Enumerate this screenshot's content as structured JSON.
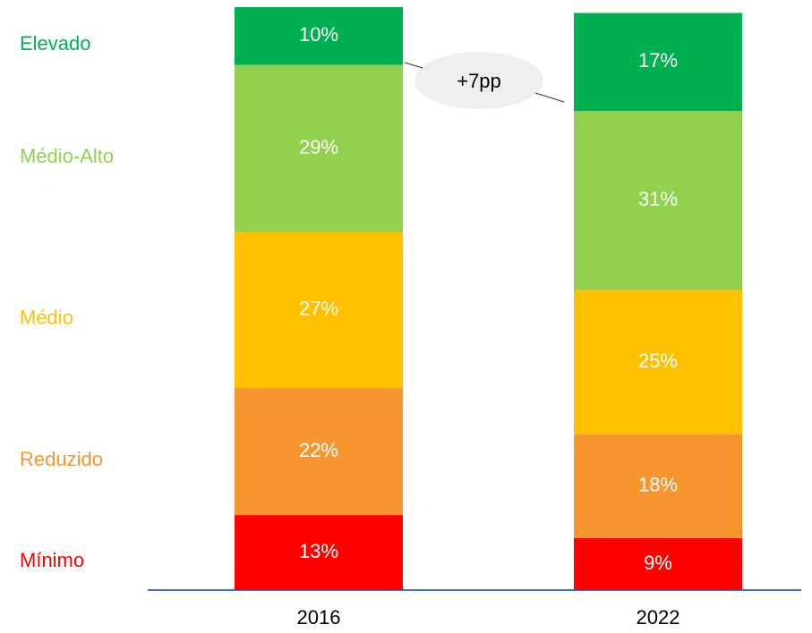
{
  "chart_data": {
    "type": "stacked_bar",
    "categories": [
      "2016",
      "2022"
    ],
    "series": [
      {
        "name": "Mínimo",
        "color": "#ff0000",
        "values": [
          13,
          9
        ],
        "value_labels": [
          "13%",
          "9%"
        ]
      },
      {
        "name": "Reduzido",
        "color": "#f7962f",
        "values": [
          22,
          18
        ],
        "value_labels": [
          "22%",
          "18%"
        ]
      },
      {
        "name": "Médio",
        "color": "#ffc000",
        "values": [
          27,
          25
        ],
        "value_labels": [
          "27%",
          "25%"
        ]
      },
      {
        "name": "Médio-Alto",
        "color": "#92d050",
        "values": [
          29,
          31
        ],
        "value_labels": [
          "29%",
          "31%"
        ]
      },
      {
        "name": "Elevado",
        "color": "#00b050",
        "values": [
          10,
          17
        ],
        "value_labels": [
          "10%",
          "17%"
        ]
      }
    ],
    "ylim": [
      0,
      101
    ],
    "annotation": "+7pp"
  }
}
